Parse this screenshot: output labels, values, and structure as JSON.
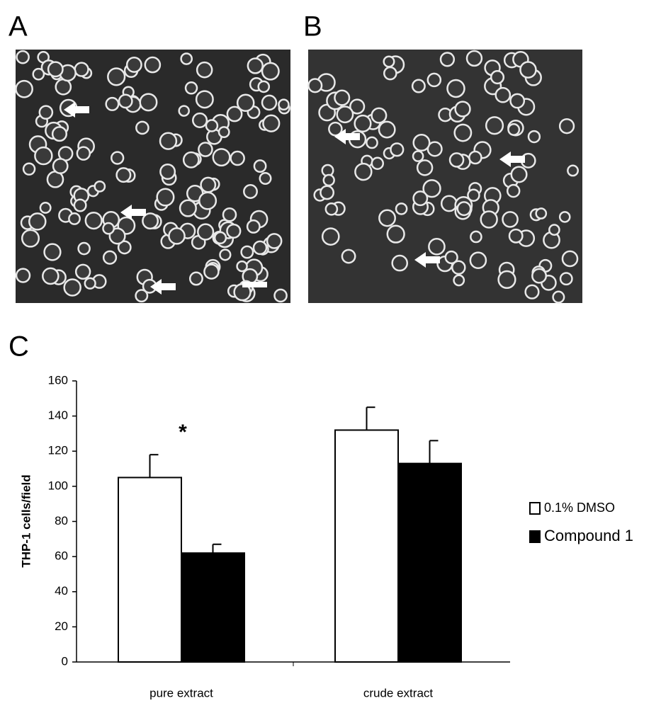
{
  "panels": [
    "A",
    "B"
  ],
  "chart_data": {
    "type": "bar",
    "panel_label": "C",
    "y_label": "THP-1 cells/field",
    "annotation": "*",
    "categories": [
      "pure extract",
      "crude extract"
    ],
    "series": [
      {
        "name": "0.1% DMSO",
        "color": "#ffffff",
        "values": [
          105,
          132
        ],
        "errors": [
          13,
          13
        ]
      },
      {
        "name": "Compound 1",
        "color": "#000000",
        "values": [
          62,
          113
        ],
        "errors": [
          5,
          13
        ]
      }
    ],
    "ylim": [
      0,
      160
    ],
    "yticks": [
      0,
      20,
      40,
      60,
      80,
      100,
      120,
      140,
      160
    ],
    "legend": "right"
  }
}
